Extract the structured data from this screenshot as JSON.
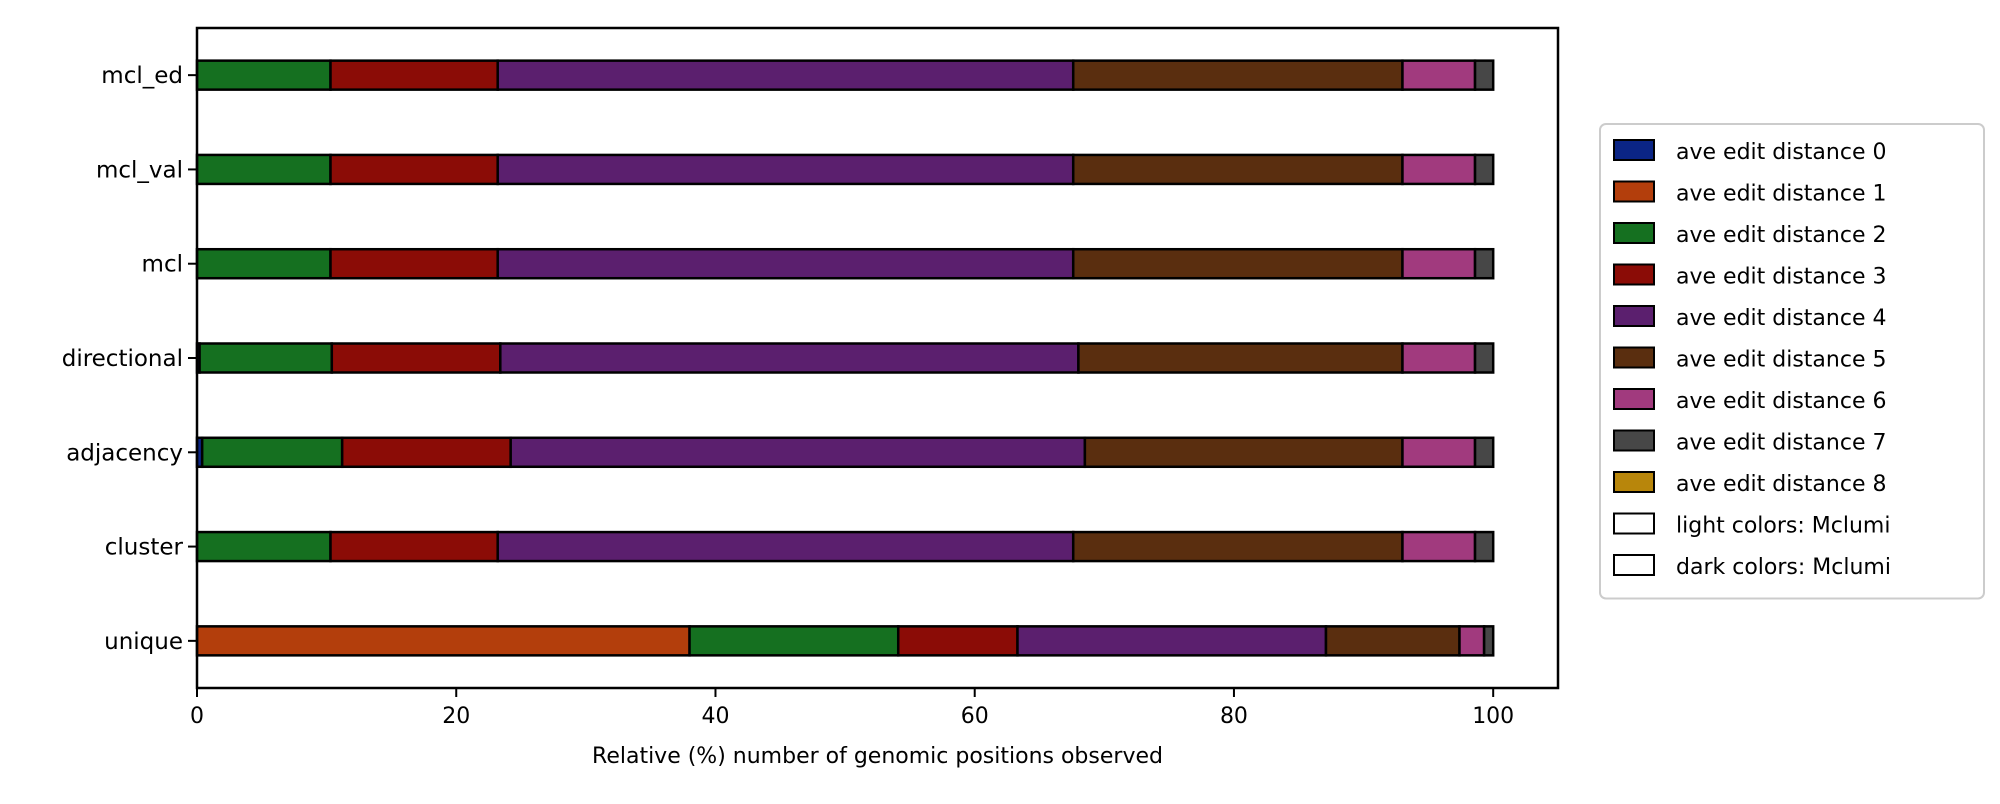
{
  "chart_data": {
    "type": "bar",
    "orientation": "horizontal",
    "stacked": true,
    "title": "",
    "xlabel": "Relative (%) number of genomic positions observed",
    "ylabel": "",
    "xlim": [
      0,
      105
    ],
    "xticks": [
      0,
      20,
      40,
      60,
      80,
      100
    ],
    "xtick_labels": [
      "0",
      "20",
      "40",
      "60",
      "80",
      "100"
    ],
    "grid": false,
    "legend_position": "right",
    "categories": [
      "unique",
      "cluster",
      "adjacency",
      "directional",
      "mcl",
      "mcl_val",
      "mcl_ed"
    ],
    "series": [
      {
        "name": "ave edit distance 0",
        "color": "#0b2585",
        "values": [
          0,
          0,
          0.4,
          0.2,
          0,
          0,
          0
        ]
      },
      {
        "name": "ave edit distance 1",
        "color": "#b33e0c",
        "values": [
          38.0,
          0,
          0,
          0,
          0,
          0,
          0
        ]
      },
      {
        "name": "ave edit distance 2",
        "color": "#157020",
        "values": [
          16.1,
          10.3,
          10.8,
          10.2,
          10.3,
          10.3,
          10.3
        ]
      },
      {
        "name": "ave edit distance 3",
        "color": "#8b0c06",
        "values": [
          9.2,
          12.9,
          13.0,
          13.0,
          12.9,
          12.9,
          12.9
        ]
      },
      {
        "name": "ave edit distance 4",
        "color": "#5b1f6e",
        "values": [
          23.8,
          44.4,
          44.3,
          44.6,
          44.4,
          44.4,
          44.4
        ]
      },
      {
        "name": "ave edit distance 5",
        "color": "#5a2e0f",
        "values": [
          10.3,
          25.4,
          24.5,
          25.0,
          25.4,
          25.4,
          25.4
        ]
      },
      {
        "name": "ave edit distance 6",
        "color": "#a13a7e",
        "values": [
          1.9,
          5.6,
          5.6,
          5.6,
          5.6,
          5.6,
          5.6
        ]
      },
      {
        "name": "ave edit distance 7",
        "color": "#474747",
        "values": [
          0.7,
          1.4,
          1.4,
          1.4,
          1.4,
          1.4,
          1.4
        ]
      },
      {
        "name": "ave edit distance 8",
        "color": "#b8860b",
        "values": [
          0,
          0,
          0,
          0,
          0,
          0,
          0
        ]
      }
    ],
    "extra_legend_entries": [
      {
        "name": "light colors: Mclumi",
        "color": "#ffffff"
      },
      {
        "name": "dark colors: Mclumi",
        "color": "#ffffff"
      }
    ]
  }
}
